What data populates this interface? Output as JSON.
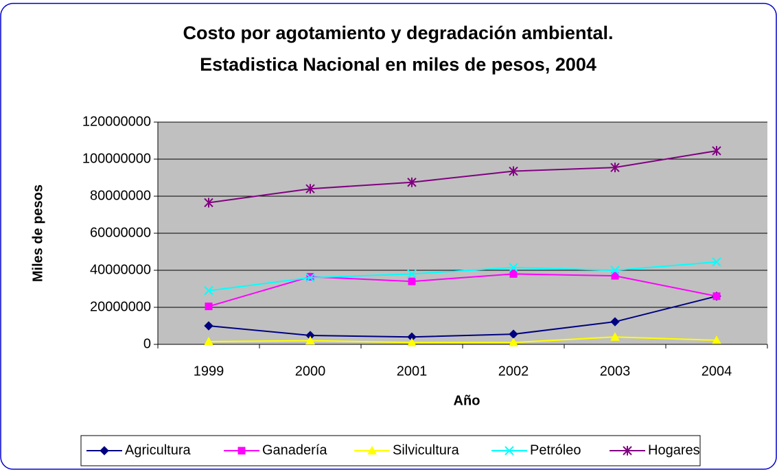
{
  "chart_data": {
    "type": "line",
    "title": "Costo por agotamiento y degradación ambiental.",
    "subtitle": "Estadistica Nacional en miles de pesos, 2004",
    "x_label": "Año",
    "y_label": "Miles de pesos",
    "categories": [
      "1999",
      "2000",
      "2001",
      "2002",
      "2003",
      "2004"
    ],
    "series": [
      {
        "name": "Agricultura",
        "color": "#000080",
        "marker": "diamond",
        "values": [
          10000000,
          4800000,
          4000000,
          5500000,
          12200000,
          26000000
        ]
      },
      {
        "name": "Ganadería",
        "color": "#ff00ff",
        "marker": "square",
        "values": [
          20500000,
          36500000,
          34000000,
          38000000,
          37000000,
          26000000
        ]
      },
      {
        "name": "Silvicultura",
        "color": "#ffff00",
        "marker": "triangle",
        "values": [
          1500000,
          2000000,
          1000000,
          1000000,
          4000000,
          2200000
        ]
      },
      {
        "name": "Petróleo",
        "color": "#00ffff",
        "marker": "x",
        "values": [
          29000000,
          36000000,
          38000000,
          41500000,
          40000000,
          44500000
        ]
      },
      {
        "name": "Hogares",
        "color": "#800080",
        "marker": "star",
        "values": [
          76500000,
          84000000,
          87500000,
          93500000,
          95500000,
          104500000
        ]
      }
    ],
    "ylim": [
      0,
      120000000
    ],
    "yticks": [
      0,
      20000000,
      40000000,
      60000000,
      80000000,
      100000000,
      120000000
    ],
    "grid": true,
    "legend": "bottom"
  }
}
